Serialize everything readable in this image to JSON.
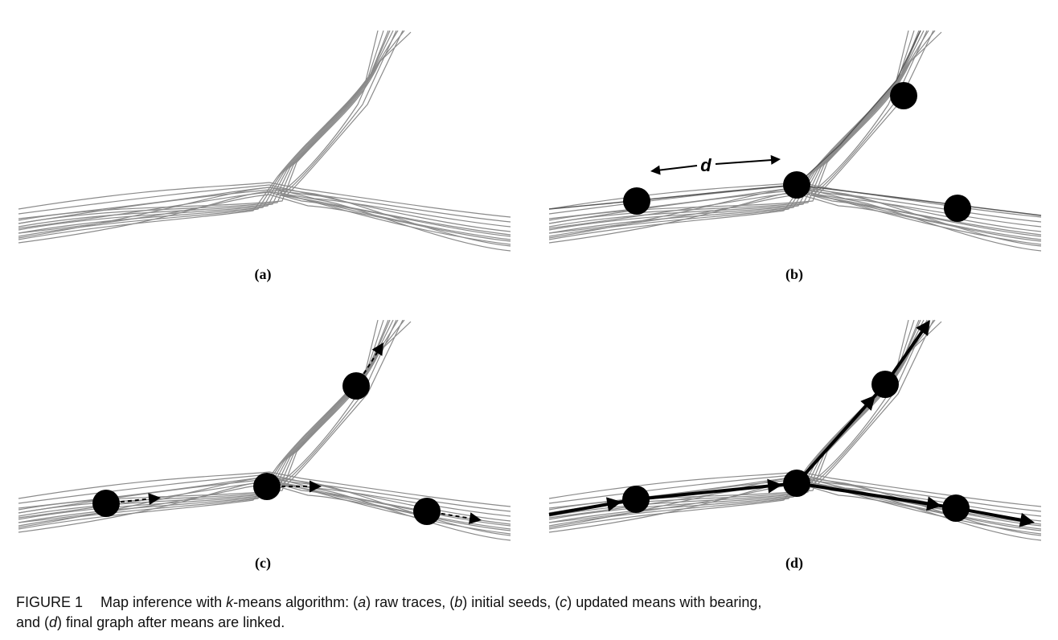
{
  "panels": {
    "a": {
      "label": "(a)"
    },
    "b": {
      "label": "(b)",
      "distance_label": "d"
    },
    "c": {
      "label": "(c)"
    },
    "d": {
      "label": "(d)"
    }
  },
  "caption": {
    "figure_number": "FIGURE 1",
    "text_1": "Map inference with ",
    "k_symbol": "k",
    "text_2": "-means algorithm: (",
    "a_symbol": "a",
    "text_3": ") raw traces, (",
    "b_symbol": "b",
    "text_4": ") initial seeds, (",
    "c_symbol": "c",
    "text_5": ") updated means with bearing,",
    "text_6": "and (",
    "d_symbol": "d",
    "text_7": ") final graph after means are linked."
  }
}
